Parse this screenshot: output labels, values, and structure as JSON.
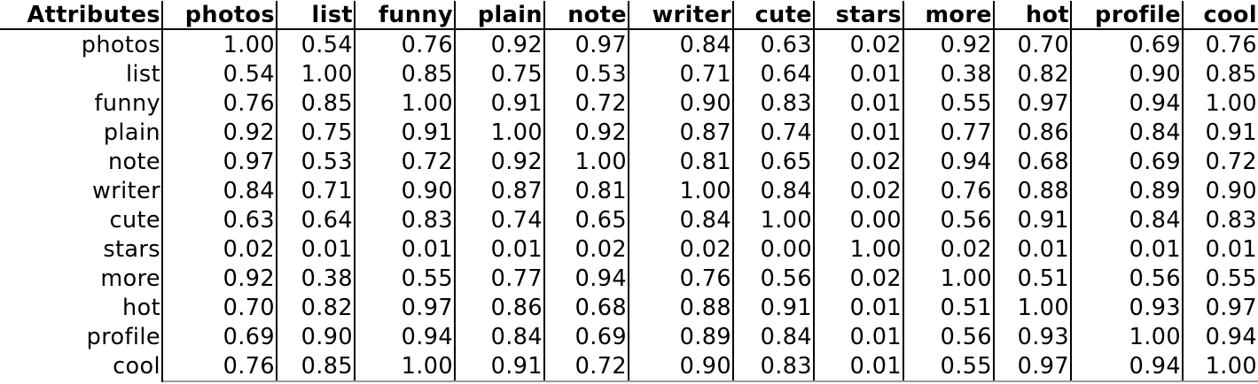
{
  "table": {
    "corner_header": "Attributes",
    "columns": [
      "photos",
      "list",
      "funny",
      "plain",
      "note",
      "writer",
      "cute",
      "stars",
      "more",
      "hot",
      "profile",
      "cool"
    ],
    "rows": [
      {
        "label": "photos",
        "values": [
          "1.00",
          "0.54",
          "0.76",
          "0.92",
          "0.97",
          "0.84",
          "0.63",
          "0.02",
          "0.92",
          "0.70",
          "0.69",
          "0.76"
        ]
      },
      {
        "label": "list",
        "values": [
          "0.54",
          "1.00",
          "0.85",
          "0.75",
          "0.53",
          "0.71",
          "0.64",
          "0.01",
          "0.38",
          "0.82",
          "0.90",
          "0.85"
        ]
      },
      {
        "label": "funny",
        "values": [
          "0.76",
          "0.85",
          "1.00",
          "0.91",
          "0.72",
          "0.90",
          "0.83",
          "0.01",
          "0.55",
          "0.97",
          "0.94",
          "1.00"
        ]
      },
      {
        "label": "plain",
        "values": [
          "0.92",
          "0.75",
          "0.91",
          "1.00",
          "0.92",
          "0.87",
          "0.74",
          "0.01",
          "0.77",
          "0.86",
          "0.84",
          "0.91"
        ]
      },
      {
        "label": "note",
        "values": [
          "0.97",
          "0.53",
          "0.72",
          "0.92",
          "1.00",
          "0.81",
          "0.65",
          "0.02",
          "0.94",
          "0.68",
          "0.69",
          "0.72"
        ]
      },
      {
        "label": "writer",
        "values": [
          "0.84",
          "0.71",
          "0.90",
          "0.87",
          "0.81",
          "1.00",
          "0.84",
          "0.02",
          "0.76",
          "0.88",
          "0.89",
          "0.90"
        ]
      },
      {
        "label": "cute",
        "values": [
          "0.63",
          "0.64",
          "0.83",
          "0.74",
          "0.65",
          "0.84",
          "1.00",
          "0.00",
          "0.56",
          "0.91",
          "0.84",
          "0.83"
        ]
      },
      {
        "label": "stars",
        "values": [
          "0.02",
          "0.01",
          "0.01",
          "0.01",
          "0.02",
          "0.02",
          "0.00",
          "1.00",
          "0.02",
          "0.01",
          "0.01",
          "0.01"
        ]
      },
      {
        "label": "more",
        "values": [
          "0.92",
          "0.38",
          "0.55",
          "0.77",
          "0.94",
          "0.76",
          "0.56",
          "0.02",
          "1.00",
          "0.51",
          "0.56",
          "0.55"
        ]
      },
      {
        "label": "hot",
        "values": [
          "0.70",
          "0.82",
          "0.97",
          "0.86",
          "0.68",
          "0.88",
          "0.91",
          "0.01",
          "0.51",
          "1.00",
          "0.93",
          "0.97"
        ]
      },
      {
        "label": "profile",
        "values": [
          "0.69",
          "0.90",
          "0.94",
          "0.84",
          "0.69",
          "0.89",
          "0.84",
          "0.01",
          "0.56",
          "0.93",
          "1.00",
          "0.94"
        ]
      },
      {
        "label": "cool",
        "values": [
          "0.76",
          "0.85",
          "1.00",
          "0.91",
          "0.72",
          "0.90",
          "0.83",
          "0.01",
          "0.55",
          "0.97",
          "0.94",
          "1.00"
        ]
      }
    ]
  }
}
